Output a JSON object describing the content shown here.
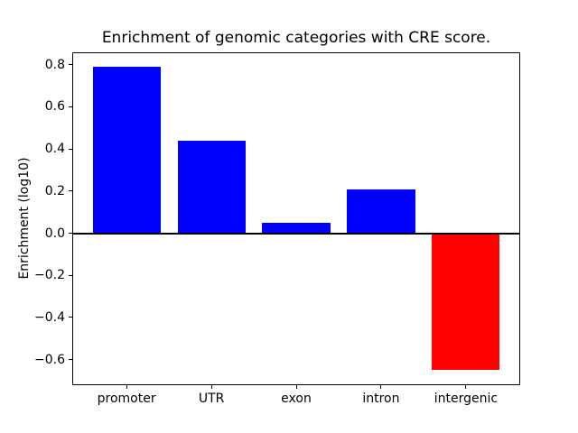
{
  "chart_data": {
    "type": "bar",
    "title": "Enrichment of genomic categories with CRE score.",
    "xlabel": "",
    "ylabel": "Enrichment (log10)",
    "categories": [
      "promoter",
      "UTR",
      "exon",
      "intron",
      "intergenic"
    ],
    "values": [
      0.79,
      0.44,
      0.05,
      0.21,
      -0.65
    ],
    "bar_colors": [
      "#0000ff",
      "#0000ff",
      "#0000ff",
      "#0000ff",
      "#ff0000"
    ],
    "positive_color": "#0000ff",
    "negative_color": "#ff0000",
    "yticks": [
      0.8,
      0.6,
      0.4,
      0.2,
      0.0,
      -0.2,
      -0.4,
      -0.6
    ],
    "ytick_labels": [
      "0.8",
      "0.6",
      "0.4",
      "0.2",
      "0.0",
      "−0.2",
      "−0.4",
      "−0.6"
    ],
    "ylim": [
      -0.722,
      0.859
    ],
    "xlim": [
      -0.64,
      4.64
    ],
    "bar_width_units": 0.8,
    "zero_line": true,
    "grid": false,
    "legend": "none",
    "background_color": "#ffffff",
    "axis_color": "#000000"
  }
}
